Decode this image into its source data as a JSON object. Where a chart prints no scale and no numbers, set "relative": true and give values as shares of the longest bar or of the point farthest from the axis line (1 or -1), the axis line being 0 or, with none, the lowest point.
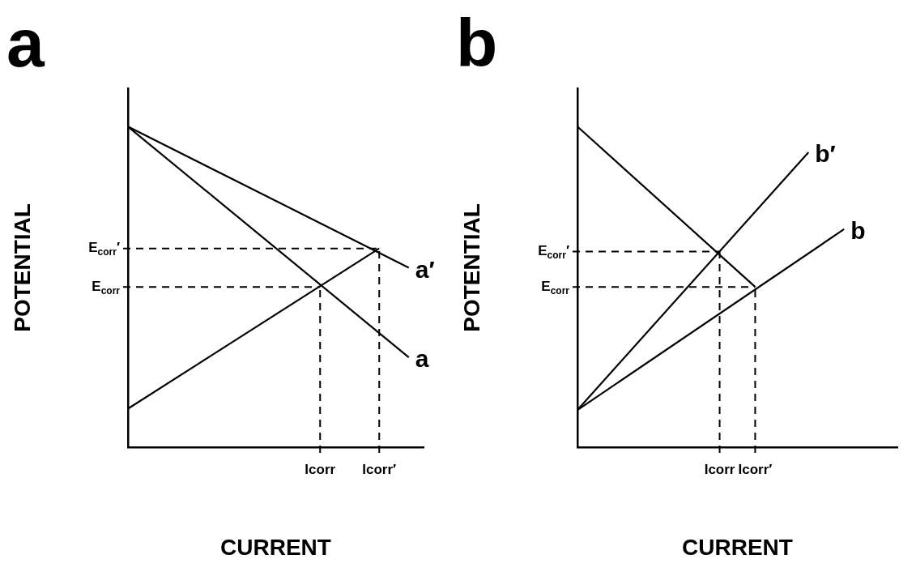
{
  "chart_data": [
    {
      "type": "line",
      "relative": true,
      "title": "a",
      "xlabel": "CURRENT",
      "ylabel": "POTENTIAL",
      "marker": "none",
      "categories": [
        null,
        null,
        null,
        null,
        null,
        null,
        null,
        null,
        null,
        null,
        null,
        null,
        null,
        "Icorr",
        null,
        null,
        null,
        "Icorr′",
        null,
        null,
        null
      ],
      "ref_lines": [
        {
          "axis": "y",
          "value": 0.5,
          "label": "E$_{corr}$",
          "color": "#000000",
          "line_style": "dashed"
        },
        {
          "axis": "y",
          "value": 0.62,
          "label": "E$_{corr}$′",
          "color": "#000000",
          "line_style": "dashed"
        },
        {
          "axis": "x",
          "value": "Icorr",
          "color": "#000000",
          "line_style": "dashed"
        },
        {
          "axis": "x",
          "value": "Icorr′",
          "color": "#000000",
          "line_style": "dashed"
        }
      ],
      "series": [
        {
          "color": "#000000",
          "values": [
            0.12,
            null,
            null,
            null,
            null,
            null,
            null,
            null,
            null,
            null,
            null,
            null,
            null,
            null,
            null,
            null,
            null,
            0.62,
            null,
            null,
            null
          ]
        },
        {
          "name": "a",
          "color": "#000000",
          "values": [
            1.0,
            null,
            null,
            null,
            null,
            null,
            null,
            null,
            null,
            null,
            null,
            null,
            null,
            null,
            null,
            null,
            null,
            null,
            null,
            0.28,
            null
          ]
        },
        {
          "name": "a′",
          "color": "#000000",
          "values": [
            1.0,
            null,
            null,
            null,
            null,
            null,
            null,
            null,
            null,
            null,
            null,
            null,
            null,
            null,
            null,
            null,
            null,
            null,
            null,
            0.56,
            null
          ]
        }
      ]
    },
    {
      "type": "line",
      "relative": true,
      "title": "b",
      "xlabel": "CURRENT",
      "ylabel": "POTENTIAL",
      "marker": "none",
      "categories": [
        null,
        null,
        null,
        null,
        null,
        null,
        null,
        null,
        "Icorr",
        null,
        "Icorr′",
        null,
        null,
        null,
        null,
        null,
        null,
        null,
        null
      ],
      "ref_lines": [
        {
          "axis": "y",
          "value": 0.61,
          "label": "E$_{corr}$′",
          "color": "#000000",
          "line_style": "dashed"
        },
        {
          "axis": "y",
          "value": 0.5,
          "label": "E$_{corr}$",
          "color": "#000000",
          "line_style": "dashed"
        },
        {
          "axis": "x",
          "value": "Icorr",
          "color": "#000000",
          "line_style": "dashed"
        },
        {
          "axis": "x",
          "value": "Icorr′",
          "color": "#000000",
          "line_style": "dashed"
        }
      ],
      "series": [
        {
          "color": "#000000",
          "values": [
            1.0,
            null,
            null,
            null,
            null,
            null,
            null,
            null,
            null,
            null,
            0.5,
            null,
            null,
            null,
            null,
            null,
            null,
            null,
            null
          ]
        },
        {
          "name": "b′",
          "color": "#000000",
          "values": [
            0.116,
            null,
            null,
            null,
            null,
            null,
            null,
            null,
            null,
            null,
            null,
            null,
            null,
            0.92,
            null,
            null,
            null,
            null,
            null
          ]
        },
        {
          "name": "b",
          "color": "#000000",
          "values": [
            0.116,
            null,
            null,
            null,
            null,
            null,
            null,
            null,
            null,
            null,
            null,
            null,
            null,
            null,
            null,
            0.68,
            null,
            null,
            null
          ]
        }
      ]
    }
  ]
}
